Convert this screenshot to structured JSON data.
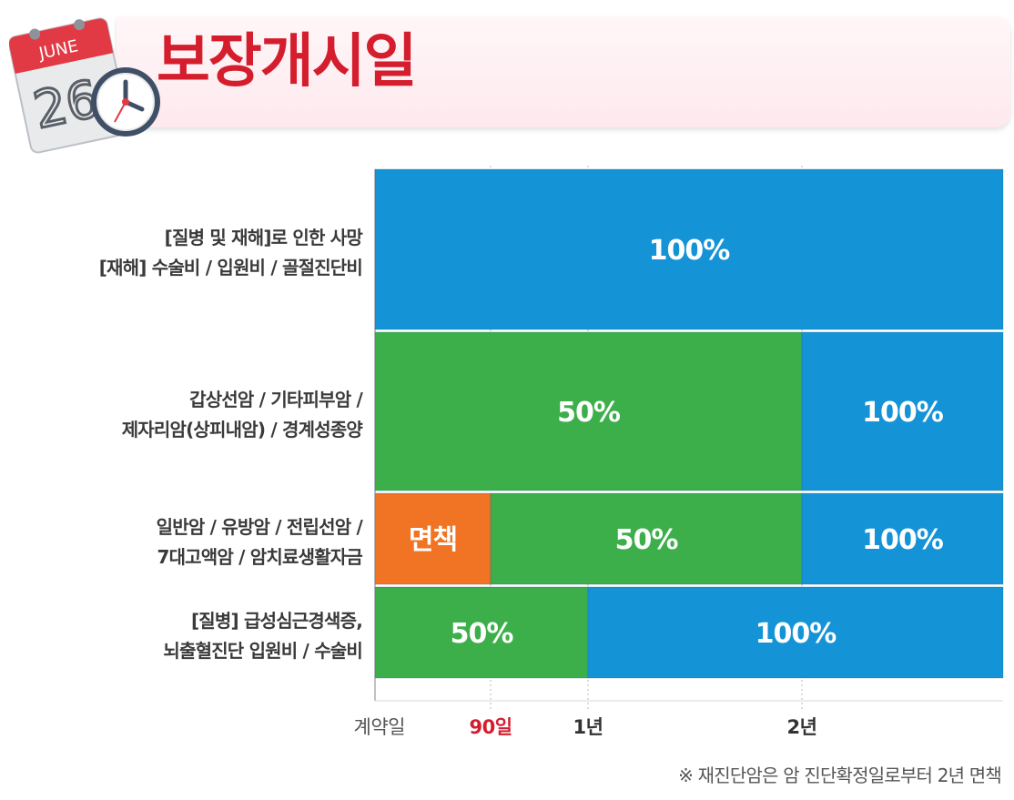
{
  "header": {
    "title": "보장개시일",
    "calendar_month": "JUNE",
    "calendar_day": "26",
    "accent_color": "#d41e2e"
  },
  "chart_data": {
    "type": "bar",
    "orientation": "horizontal-stacked-timeline",
    "x_ticks": [
      {
        "label": "계약일",
        "color": "#555555"
      },
      {
        "label": "90일",
        "color": "#d41e2e"
      },
      {
        "label": "1년",
        "color": "#333333"
      },
      {
        "label": "2년",
        "color": "#333333"
      }
    ],
    "rows": [
      {
        "label_lines": [
          "[질병 및 재해]로 인한 사망",
          "[재해] 수술비 / 입원비 / 골절진단비"
        ],
        "segments": [
          {
            "label": "100%",
            "start": "계약일",
            "end": "end",
            "color": "#1493d6"
          }
        ]
      },
      {
        "label_lines": [
          "갑상선암 / 기타피부암 /",
          "제자리암(상피내암) / 경계성종양"
        ],
        "segments": [
          {
            "label": "50%",
            "start": "계약일",
            "end": "2년",
            "color": "#3daf4a"
          },
          {
            "label": "100%",
            "start": "2년",
            "end": "end",
            "color": "#1493d6"
          }
        ]
      },
      {
        "label_lines": [
          "일반암 / 유방암 / 전립선암 /",
          "7대고액암 / 암치료생활자금"
        ],
        "segments": [
          {
            "label": "면책",
            "start": "계약일",
            "end": "90일",
            "color": "#f07423"
          },
          {
            "label": "50%",
            "start": "90일",
            "end": "2년",
            "color": "#3daf4a"
          },
          {
            "label": "100%",
            "start": "2년",
            "end": "end",
            "color": "#1493d6"
          }
        ]
      },
      {
        "label_lines": [
          "[질병] 급성심근경색증,",
          "뇌출혈진단 입원비 / 수술비"
        ],
        "segments": [
          {
            "label": "50%",
            "start": "계약일",
            "end": "1년",
            "color": "#3daf4a"
          },
          {
            "label": "100%",
            "start": "1년",
            "end": "end",
            "color": "#1493d6"
          }
        ]
      }
    ],
    "footnote": "※ 재진단암은 암 진단확정일로부터 2년 면책"
  }
}
